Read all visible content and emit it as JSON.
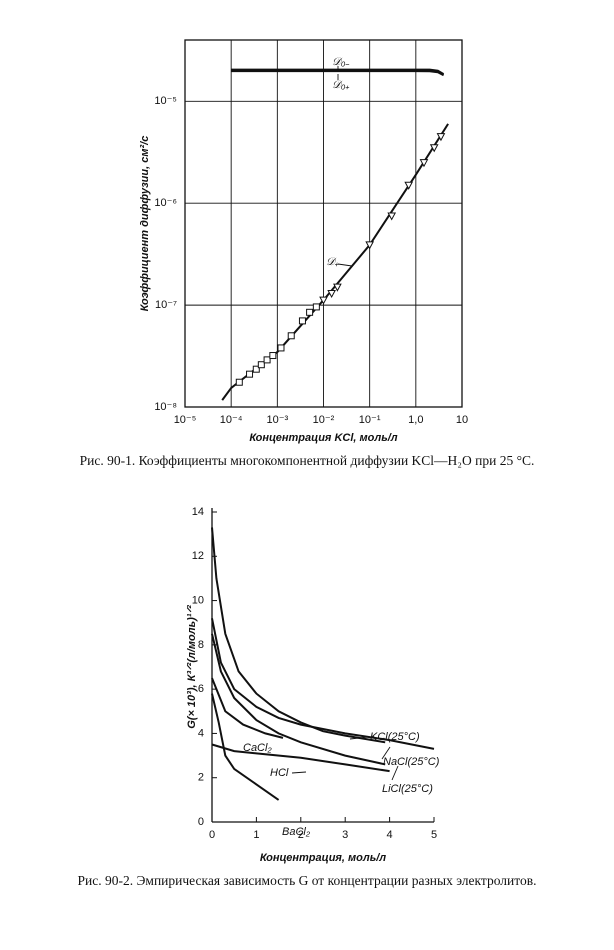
{
  "chart_data": [
    {
      "type": "line",
      "xscale": "log",
      "yscale": "log",
      "grid": true,
      "xlabel": "Концентрация KCl, моль/л",
      "ylabel": "Коэффициент диффузии, см²/с",
      "caption": "Рис. 90-1. Коэффициенты многокомпонентной диффузии KCl—H₂O при 25 °C.",
      "xlim": [
        1e-05,
        10
      ],
      "ylim": [
        1e-08,
        4e-05
      ],
      "xticks": [
        {
          "value": 1e-05,
          "label": "10⁻⁵"
        },
        {
          "value": 0.0001,
          "label": "10⁻⁴"
        },
        {
          "value": 0.001,
          "label": "10⁻³"
        },
        {
          "value": 0.01,
          "label": "10⁻²"
        },
        {
          "value": 0.1,
          "label": "10⁻¹"
        },
        {
          "value": 1,
          "label": "1,0"
        },
        10
      ],
      "yticks": [
        {
          "value": 1e-08,
          "label": "10⁻⁸"
        },
        {
          "value": 1e-07,
          "label": "10⁻⁷"
        },
        {
          "value": 1e-06,
          "label": "10⁻⁶"
        },
        {
          "value": 1e-05,
          "label": "10⁻⁵"
        }
      ],
      "series": [
        {
          "name": "𝒟₀₋",
          "color": "#111111",
          "x": [
            0.0001,
            0.001,
            0.01,
            0.1,
            1,
            2,
            3,
            4
          ],
          "values": [
            2.05e-05,
            2.05e-05,
            2.05e-05,
            2.05e-05,
            2.05e-05,
            2.05e-05,
            2e-05,
            1.85e-05
          ]
        },
        {
          "name": "𝒟₀₊",
          "color": "#111111",
          "x": [
            0.0001,
            0.001,
            0.01,
            0.1,
            1,
            2,
            3,
            4
          ],
          "values": [
            1.98e-05,
            1.98e-05,
            1.98e-05,
            1.98e-05,
            1.98e-05,
            1.97e-05,
            1.93e-05,
            1.8e-05
          ]
        },
        {
          "name": "𝒟₊",
          "color": "#111111",
          "x": [
            6.4e-05,
            0.0001,
            0.001,
            0.01,
            0.1,
            1,
            5
          ],
          "values": [
            1.17e-08,
            1.54e-08,
            3.46e-08,
            1.12e-07,
            3.9e-07,
            1.9e-06,
            6e-06
          ],
          "squares": {
            "x": [
              0.00015,
              0.00025,
              0.00035,
              0.00045,
              0.0006,
              0.0008,
              0.0012,
              0.002,
              0.0035,
              0.005,
              0.007
            ],
            "values": [
              1.75e-08,
              2.1e-08,
              2.35e-08,
              2.6e-08,
              2.9e-08,
              3.2e-08,
              3.8e-08,
              5e-08,
              7e-08,
              8.5e-08,
              9.6e-08
            ]
          },
          "triangles": {
            "x": [
              0.01,
              0.015,
              0.02,
              0.1,
              0.3,
              0.7,
              1.5,
              2.5,
              3.5
            ],
            "values": [
              1.12e-07,
              1.3e-07,
              1.5e-07,
              3.9e-07,
              7.5e-07,
              1.5e-06,
              2.5e-06,
              3.5e-06,
              4.5e-06
            ]
          }
        }
      ]
    },
    {
      "type": "line",
      "grid": false,
      "xlabel": "Концентрация, моль/л",
      "ylabel": "G(× 10³), К³ᐟ²(л/моль)¹ᐟ²",
      "caption": "Рис. 90-2. Эмпирическая зависимость G от концентрации разных электролитов.",
      "xlim": [
        0,
        5
      ],
      "ylim": [
        0,
        14
      ],
      "xticks": [
        0,
        1,
        2,
        3,
        4,
        5
      ],
      "yticks": [
        0,
        2,
        4,
        6,
        8,
        10,
        12,
        14
      ],
      "series": [
        {
          "name": "KCl(25°C)",
          "color": "#111111",
          "x": [
            0,
            0.1,
            0.3,
            0.6,
            1,
            1.5,
            2,
            2.5,
            3,
            3.9
          ],
          "values": [
            13.3,
            11,
            8.5,
            6.8,
            5.8,
            5.0,
            4.5,
            4.1,
            3.9,
            3.6
          ]
        },
        {
          "name": "NaCl(25°C)",
          "color": "#111111",
          "x": [
            0,
            0.2,
            0.5,
            1,
            1.5,
            2,
            3,
            4,
            5
          ],
          "values": [
            9.2,
            7.2,
            6.0,
            5.2,
            4.7,
            4.4,
            4.0,
            3.7,
            3.3
          ]
        },
        {
          "name": "LiCl(25°C)",
          "color": "#111111",
          "x": [
            0,
            0.2,
            0.5,
            1,
            1.5,
            2,
            3,
            3.9
          ],
          "values": [
            8.5,
            6.8,
            5.6,
            4.6,
            4.0,
            3.6,
            3.0,
            2.6
          ]
        },
        {
          "name": "CaCl₂",
          "color": "#111111",
          "x": [
            0,
            0.3,
            0.7,
            1.2,
            1.6
          ],
          "values": [
            6.5,
            5.0,
            4.4,
            4.0,
            3.8
          ]
        },
        {
          "name": "HCl",
          "color": "#111111",
          "x": [
            0,
            0.5,
            1,
            2,
            3,
            4
          ],
          "values": [
            3.5,
            3.2,
            3.1,
            2.9,
            2.6,
            2.3
          ]
        },
        {
          "name": "BaCl₂",
          "color": "#111111",
          "x": [
            0,
            0.15,
            0.3,
            0.5,
            1,
            1.5
          ],
          "values": [
            5.8,
            4.5,
            3.0,
            2.4,
            1.7,
            1.0
          ]
        }
      ]
    }
  ]
}
